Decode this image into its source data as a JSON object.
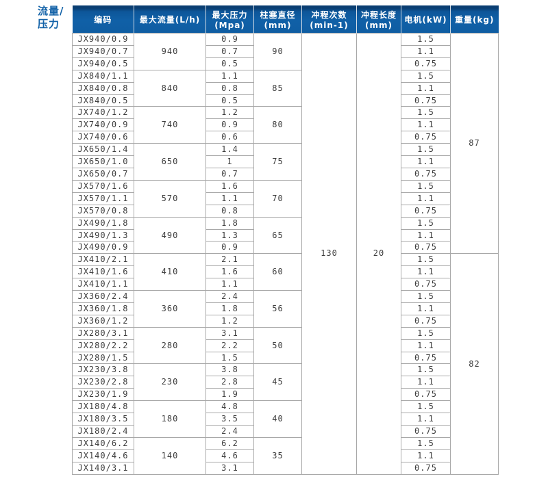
{
  "page_label": {
    "line1": "流量/",
    "line2": "压力"
  },
  "colors": {
    "header_blue": "#1060a7",
    "header_dark_top": "#0a3e72",
    "label_blue": "#1262a8",
    "grid_line": "#a8a8a8",
    "body_text": "#3d3d3d",
    "header_text": "#ffffff"
  },
  "chart_data": {
    "type": "table",
    "title": "流量/压力",
    "columns": [
      {
        "label": "编码",
        "sub": ""
      },
      {
        "label": "最大流量(L/h)",
        "sub": ""
      },
      {
        "label": "最大压力",
        "sub": "(Mpa)"
      },
      {
        "label": "柱塞直径",
        "sub": "(mm)"
      },
      {
        "label": "冲程次数",
        "sub": "(min-1)"
      },
      {
        "label": "冲程长度",
        "sub": "(mm)"
      },
      {
        "label": "电机(kW)",
        "sub": ""
      },
      {
        "label": "重量(kg)",
        "sub": ""
      }
    ],
    "stroke_count": "130",
    "stroke_length": "20",
    "weights": [
      {
        "value": "87",
        "row_span": 18
      },
      {
        "value": "82",
        "row_span": 18
      }
    ],
    "groups": [
      {
        "flow": "940",
        "diameter": "90",
        "rows": [
          {
            "code": "JX940/0.9",
            "pressure": "0.9",
            "motor": "1.5"
          },
          {
            "code": "JX940/0.7",
            "pressure": "0.7",
            "motor": "1.1"
          },
          {
            "code": "JX940/0.5",
            "pressure": "0.5",
            "motor": "0.75"
          }
        ]
      },
      {
        "flow": "840",
        "diameter": "85",
        "rows": [
          {
            "code": "JX840/1.1",
            "pressure": "1.1",
            "motor": "1.5"
          },
          {
            "code": "JX840/0.8",
            "pressure": "0.8",
            "motor": "1.1"
          },
          {
            "code": "JX840/0.5",
            "pressure": "0.5",
            "motor": "0.75"
          }
        ]
      },
      {
        "flow": "740",
        "diameter": "80",
        "rows": [
          {
            "code": "JX740/1.2",
            "pressure": "1.2",
            "motor": "1.5"
          },
          {
            "code": "JX740/0.9",
            "pressure": "0.9",
            "motor": "1.1"
          },
          {
            "code": "JX740/0.6",
            "pressure": "0.6",
            "motor": "0.75"
          }
        ]
      },
      {
        "flow": "650",
        "diameter": "75",
        "rows": [
          {
            "code": "JX650/1.4",
            "pressure": "1.4",
            "motor": "1.5"
          },
          {
            "code": "JX650/1.0",
            "pressure": "1",
            "motor": "1.1"
          },
          {
            "code": "JX650/0.7",
            "pressure": "0.7",
            "motor": "0.75"
          }
        ]
      },
      {
        "flow": "570",
        "diameter": "70",
        "rows": [
          {
            "code": "JX570/1.6",
            "pressure": "1.6",
            "motor": "1.5"
          },
          {
            "code": "JX570/1.1",
            "pressure": "1.1",
            "motor": "1.1"
          },
          {
            "code": "JX570/0.8",
            "pressure": "0.8",
            "motor": "0.75"
          }
        ]
      },
      {
        "flow": "490",
        "diameter": "65",
        "rows": [
          {
            "code": "JX490/1.8",
            "pressure": "1.8",
            "motor": "1.5"
          },
          {
            "code": "JX490/1.3",
            "pressure": "1.3",
            "motor": "1.1"
          },
          {
            "code": "JX490/0.9",
            "pressure": "0.9",
            "motor": "0.75"
          }
        ]
      },
      {
        "flow": "410",
        "diameter": "60",
        "rows": [
          {
            "code": "JX410/2.1",
            "pressure": "2.1",
            "motor": "1.5"
          },
          {
            "code": "JX410/1.6",
            "pressure": "1.6",
            "motor": "1.1"
          },
          {
            "code": "JX410/1.1",
            "pressure": "1.1",
            "motor": "0.75"
          }
        ]
      },
      {
        "flow": "360",
        "diameter": "56",
        "rows": [
          {
            "code": "JX360/2.4",
            "pressure": "2.4",
            "motor": "1.5"
          },
          {
            "code": "JX360/1.8",
            "pressure": "1.8",
            "motor": "1.1"
          },
          {
            "code": "JX360/1.2",
            "pressure": "1.2",
            "motor": "0.75"
          }
        ]
      },
      {
        "flow": "280",
        "diameter": "50",
        "rows": [
          {
            "code": "JX280/3.1",
            "pressure": "3.1",
            "motor": "1.5"
          },
          {
            "code": "JX280/2.2",
            "pressure": "2.2",
            "motor": "1.1"
          },
          {
            "code": "JX280/1.5",
            "pressure": "1.5",
            "motor": "0.75"
          }
        ]
      },
      {
        "flow": "230",
        "diameter": "45",
        "rows": [
          {
            "code": "JX230/3.8",
            "pressure": "3.8",
            "motor": "1.5"
          },
          {
            "code": "JX230/2.8",
            "pressure": "2.8",
            "motor": "1.1"
          },
          {
            "code": "JX230/1.9",
            "pressure": "1.9",
            "motor": "0.75"
          }
        ]
      },
      {
        "flow": "180",
        "diameter": "40",
        "rows": [
          {
            "code": "JX180/4.8",
            "pressure": "4.8",
            "motor": "1.5"
          },
          {
            "code": "JX180/3.5",
            "pressure": "3.5",
            "motor": "1.1"
          },
          {
            "code": "JX180/2.4",
            "pressure": "2.4",
            "motor": "0.75"
          }
        ]
      },
      {
        "flow": "140",
        "diameter": "35",
        "rows": [
          {
            "code": "JX140/6.2",
            "pressure": "6.2",
            "motor": "1.5"
          },
          {
            "code": "JX140/4.6",
            "pressure": "4.6",
            "motor": "1.1"
          },
          {
            "code": "JX140/3.1",
            "pressure": "3.1",
            "motor": "0.75"
          }
        ]
      }
    ]
  }
}
